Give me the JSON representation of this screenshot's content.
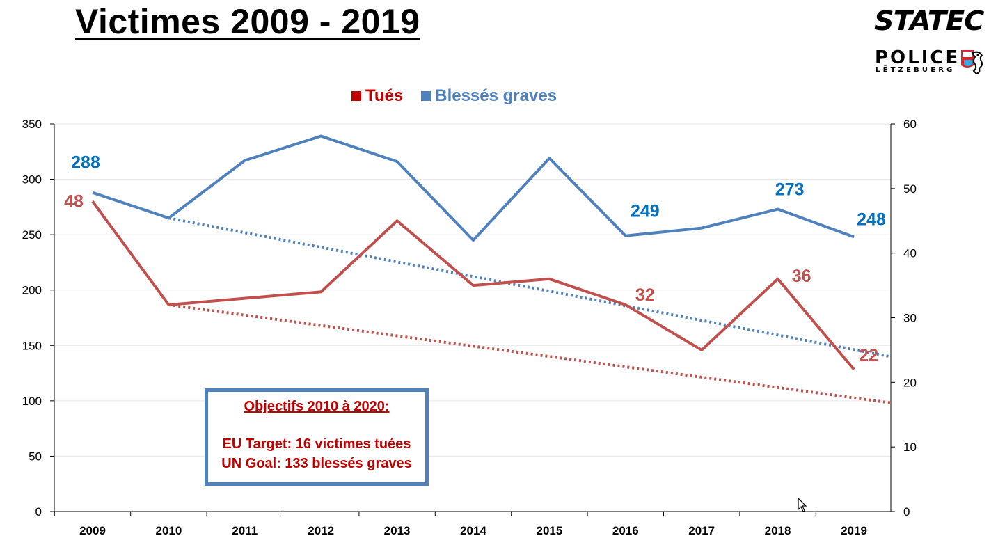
{
  "header": {
    "title": "Victimes 2009 - 2019"
  },
  "logos": {
    "statec": "STATEC",
    "police_word": "POLICE",
    "police_sub": "LËTZEBUERG"
  },
  "objectives_box": {
    "title": "Objectifs 2010 à 2020:",
    "line1": "EU Target: 16 victimes tuées",
    "line2": "UN Goal: 133 blessés graves"
  },
  "colors": {
    "tues": "#c0504d",
    "blesses": "#4f81bd",
    "tues_text": "#c00000",
    "blesses_text": "#4f81bd",
    "tues_label": "#c0504d",
    "blesses_label": "#0070c0"
  },
  "chart_data": {
    "type": "line",
    "title": "Victimes 2009 - 2019",
    "categories": [
      "2009",
      "2010",
      "2011",
      "2012",
      "2013",
      "2014",
      "2015",
      "2016",
      "2017",
      "2018",
      "2019"
    ],
    "left_axis": {
      "min": 0,
      "max": 350,
      "ticks": [
        0,
        50,
        100,
        150,
        200,
        250,
        300,
        350
      ]
    },
    "right_axis": {
      "min": 0,
      "max": 60,
      "ticks": [
        0,
        10,
        20,
        30,
        40,
        50,
        60
      ]
    },
    "legend_position": "top-center",
    "grid": true,
    "series": [
      {
        "name": "Tués",
        "axis": "right",
        "values": [
          48,
          32,
          33,
          34,
          45,
          35,
          36,
          32,
          25,
          36,
          22
        ],
        "labels": [
          {
            "index": 0,
            "text": "48"
          },
          {
            "index": 7,
            "text": "32"
          },
          {
            "index": 9,
            "text": "36"
          },
          {
            "index": 10,
            "text": "22"
          }
        ],
        "trend": {
          "from_category": "2010",
          "from_value": 32,
          "to_category": "2020",
          "to_value": 16
        }
      },
      {
        "name": "Blessés graves",
        "axis": "left",
        "values": [
          288,
          265,
          317,
          339,
          316,
          245,
          319,
          249,
          256,
          273,
          248
        ],
        "labels": [
          {
            "index": 0,
            "text": "288"
          },
          {
            "index": 7,
            "text": "249"
          },
          {
            "index": 9,
            "text": "273"
          },
          {
            "index": 10,
            "text": "248"
          }
        ],
        "trend": {
          "from_category": "2010",
          "from_value": 265,
          "to_category": "2020",
          "to_value": 133
        }
      }
    ]
  }
}
